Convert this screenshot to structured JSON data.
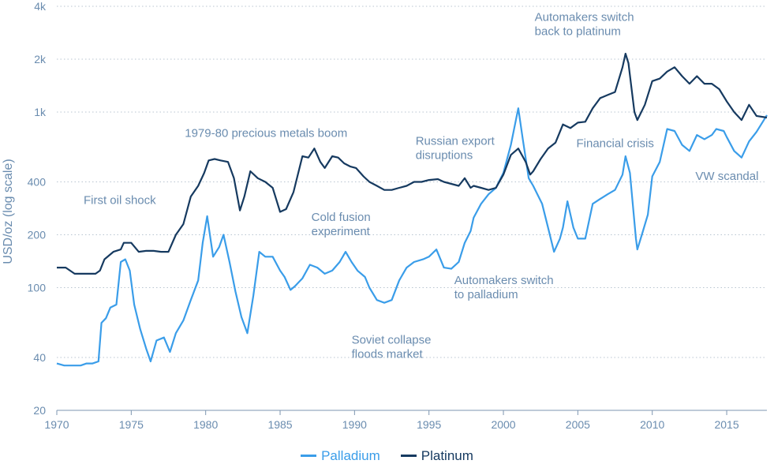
{
  "chart_data": {
    "type": "line",
    "title": "",
    "xlabel": "",
    "ylabel": "USD/oz (log scale)",
    "yscale": "log",
    "ylim": [
      20,
      4000
    ],
    "xlim": [
      1970,
      2017.7
    ],
    "y_ticks": [
      {
        "v": 20,
        "label": "20"
      },
      {
        "v": 40,
        "label": "40"
      },
      {
        "v": 100,
        "label": "100"
      },
      {
        "v": 200,
        "label": "200"
      },
      {
        "v": 400,
        "label": "400"
      },
      {
        "v": 1000,
        "label": "1k"
      },
      {
        "v": 2000,
        "label": "2k"
      },
      {
        "v": 4000,
        "label": "4k"
      }
    ],
    "x_ticks": [
      1970,
      1975,
      1980,
      1985,
      1990,
      1995,
      2000,
      2005,
      2010,
      2015
    ],
    "grid": "horizontal dotted",
    "legend_position": "bottom-center",
    "colors": {
      "palladium": "#3a9de9",
      "platinum": "#163a60",
      "text": "#6a8caf",
      "grid": "#b8c4d0"
    },
    "series": [
      {
        "name": "Palladium",
        "key": "palladium",
        "points": [
          [
            1970,
            37
          ],
          [
            1970.5,
            36
          ],
          [
            1971,
            36
          ],
          [
            1971.6,
            36
          ],
          [
            1972,
            37
          ],
          [
            1972.4,
            37
          ],
          [
            1972.8,
            38
          ],
          [
            1973,
            63
          ],
          [
            1973.3,
            67
          ],
          [
            1973.6,
            77
          ],
          [
            1974,
            80
          ],
          [
            1974.3,
            140
          ],
          [
            1974.6,
            145
          ],
          [
            1974.9,
            125
          ],
          [
            1975.2,
            80
          ],
          [
            1975.6,
            58
          ],
          [
            1976,
            45
          ],
          [
            1976.3,
            38
          ],
          [
            1976.7,
            50
          ],
          [
            1977.2,
            52
          ],
          [
            1977.6,
            43
          ],
          [
            1978,
            55
          ],
          [
            1978.5,
            65
          ],
          [
            1979,
            85
          ],
          [
            1979.5,
            110
          ],
          [
            1979.8,
            180
          ],
          [
            1980.1,
            255
          ],
          [
            1980.5,
            150
          ],
          [
            1980.9,
            170
          ],
          [
            1981.2,
            200
          ],
          [
            1981.6,
            140
          ],
          [
            1982,
            95
          ],
          [
            1982.4,
            68
          ],
          [
            1982.8,
            55
          ],
          [
            1983.2,
            90
          ],
          [
            1983.6,
            160
          ],
          [
            1984,
            150
          ],
          [
            1984.5,
            150
          ],
          [
            1985,
            125
          ],
          [
            1985.3,
            115
          ],
          [
            1985.7,
            97
          ],
          [
            1986,
            102
          ],
          [
            1986.5,
            113
          ],
          [
            1987,
            135
          ],
          [
            1987.5,
            130
          ],
          [
            1988,
            120
          ],
          [
            1988.5,
            125
          ],
          [
            1989,
            140
          ],
          [
            1989.4,
            160
          ],
          [
            1989.8,
            140
          ],
          [
            1990.2,
            125
          ],
          [
            1990.7,
            115
          ],
          [
            1991,
            100
          ],
          [
            1991.5,
            85
          ],
          [
            1992,
            82
          ],
          [
            1992.5,
            85
          ],
          [
            1993,
            110
          ],
          [
            1993.5,
            130
          ],
          [
            1994,
            140
          ],
          [
            1994.6,
            145
          ],
          [
            1995,
            150
          ],
          [
            1995.5,
            165
          ],
          [
            1996,
            130
          ],
          [
            1996.5,
            128
          ],
          [
            1997,
            140
          ],
          [
            1997.4,
            180
          ],
          [
            1997.8,
            210
          ],
          [
            1998,
            250
          ],
          [
            1998.5,
            300
          ],
          [
            1999,
            340
          ],
          [
            1999.5,
            370
          ],
          [
            2000,
            450
          ],
          [
            2000.5,
            650
          ],
          [
            2001,
            1050
          ],
          [
            2001.3,
            700
          ],
          [
            2001.7,
            420
          ],
          [
            2002,
            380
          ],
          [
            2002.6,
            300
          ],
          [
            2003,
            220
          ],
          [
            2003.4,
            160
          ],
          [
            2003.8,
            190
          ],
          [
            2004,
            220
          ],
          [
            2004.3,
            310
          ],
          [
            2004.7,
            220
          ],
          [
            2005,
            190
          ],
          [
            2005.5,
            190
          ],
          [
            2006,
            300
          ],
          [
            2006.5,
            320
          ],
          [
            2007,
            340
          ],
          [
            2007.5,
            360
          ],
          [
            2008,
            440
          ],
          [
            2008.2,
            560
          ],
          [
            2008.5,
            450
          ],
          [
            2008.9,
            190
          ],
          [
            2009,
            165
          ],
          [
            2009.3,
            200
          ],
          [
            2009.7,
            260
          ],
          [
            2010,
            430
          ],
          [
            2010.5,
            520
          ],
          [
            2011,
            800
          ],
          [
            2011.5,
            780
          ],
          [
            2012,
            650
          ],
          [
            2012.5,
            600
          ],
          [
            2013,
            740
          ],
          [
            2013.5,
            700
          ],
          [
            2014,
            740
          ],
          [
            2014.3,
            800
          ],
          [
            2014.8,
            780
          ],
          [
            2015,
            720
          ],
          [
            2015.5,
            600
          ],
          [
            2016,
            550
          ],
          [
            2016.5,
            680
          ],
          [
            2017,
            770
          ],
          [
            2017.7,
            960
          ]
        ]
      },
      {
        "name": "Platinum",
        "key": "platinum",
        "points": [
          [
            1970,
            130
          ],
          [
            1970.6,
            130
          ],
          [
            1971.2,
            120
          ],
          [
            1972,
            120
          ],
          [
            1972.6,
            120
          ],
          [
            1972.9,
            125
          ],
          [
            1973.2,
            145
          ],
          [
            1973.8,
            160
          ],
          [
            1974.3,
            165
          ],
          [
            1974.5,
            180
          ],
          [
            1975,
            180
          ],
          [
            1975.5,
            160
          ],
          [
            1976,
            162
          ],
          [
            1976.5,
            162
          ],
          [
            1977,
            160
          ],
          [
            1977.5,
            160
          ],
          [
            1978,
            200
          ],
          [
            1978.5,
            230
          ],
          [
            1979,
            330
          ],
          [
            1979.5,
            380
          ],
          [
            1979.9,
            450
          ],
          [
            1980.2,
            530
          ],
          [
            1980.6,
            540
          ],
          [
            1981,
            530
          ],
          [
            1981.5,
            520
          ],
          [
            1981.9,
            420
          ],
          [
            1982.3,
            275
          ],
          [
            1982.6,
            330
          ],
          [
            1983,
            460
          ],
          [
            1983.5,
            420
          ],
          [
            1984,
            400
          ],
          [
            1984.5,
            370
          ],
          [
            1985,
            270
          ],
          [
            1985.4,
            280
          ],
          [
            1985.9,
            350
          ],
          [
            1986.5,
            560
          ],
          [
            1986.9,
            550
          ],
          [
            1987.3,
            620
          ],
          [
            1987.7,
            520
          ],
          [
            1988,
            480
          ],
          [
            1988.5,
            560
          ],
          [
            1988.9,
            550
          ],
          [
            1989.3,
            510
          ],
          [
            1989.7,
            490
          ],
          [
            1990.1,
            480
          ],
          [
            1990.6,
            430
          ],
          [
            1991,
            400
          ],
          [
            1991.5,
            380
          ],
          [
            1992,
            360
          ],
          [
            1992.5,
            360
          ],
          [
            1993,
            370
          ],
          [
            1993.5,
            380
          ],
          [
            1994,
            400
          ],
          [
            1994.5,
            400
          ],
          [
            1995,
            410
          ],
          [
            1995.6,
            415
          ],
          [
            1996,
            400
          ],
          [
            1996.5,
            390
          ],
          [
            1997,
            380
          ],
          [
            1997.4,
            420
          ],
          [
            1997.8,
            370
          ],
          [
            1998,
            380
          ],
          [
            1998.5,
            370
          ],
          [
            1999,
            360
          ],
          [
            1999.5,
            370
          ],
          [
            2000,
            440
          ],
          [
            2000.5,
            570
          ],
          [
            2001,
            620
          ],
          [
            2001.5,
            520
          ],
          [
            2001.8,
            440
          ],
          [
            2002,
            460
          ],
          [
            2002.5,
            540
          ],
          [
            2003,
            620
          ],
          [
            2003.5,
            670
          ],
          [
            2004,
            850
          ],
          [
            2004.5,
            810
          ],
          [
            2005,
            870
          ],
          [
            2005.5,
            880
          ],
          [
            2006,
            1050
          ],
          [
            2006.5,
            1200
          ],
          [
            2007,
            1250
          ],
          [
            2007.5,
            1300
          ],
          [
            2008,
            1800
          ],
          [
            2008.2,
            2150
          ],
          [
            2008.4,
            1900
          ],
          [
            2008.8,
            1000
          ],
          [
            2009,
            900
          ],
          [
            2009.5,
            1100
          ],
          [
            2010,
            1500
          ],
          [
            2010.5,
            1550
          ],
          [
            2011,
            1700
          ],
          [
            2011.5,
            1800
          ],
          [
            2012,
            1600
          ],
          [
            2012.5,
            1450
          ],
          [
            2013,
            1600
          ],
          [
            2013.5,
            1450
          ],
          [
            2014,
            1450
          ],
          [
            2014.5,
            1350
          ],
          [
            2015,
            1150
          ],
          [
            2015.5,
            1000
          ],
          [
            2016,
            900
          ],
          [
            2016.5,
            1100
          ],
          [
            2017,
            950
          ],
          [
            2017.7,
            930
          ]
        ]
      }
    ],
    "annotations": [
      {
        "lines": [
          "First oil shock"
        ],
        "x": 1971.8,
        "y": 300
      },
      {
        "lines": [
          "1979-80 precious metals boom"
        ],
        "x": 1978.6,
        "y": 720
      },
      {
        "lines": [
          "Cold fusion",
          "experiment"
        ],
        "x": 1987.1,
        "y": 240
      },
      {
        "lines": [
          "Soviet collapse",
          "floods market"
        ],
        "x": 1989.8,
        "y": 48
      },
      {
        "lines": [
          "Russian export",
          "disruptions"
        ],
        "x": 1994.1,
        "y": 650
      },
      {
        "lines": [
          "Automakers switch",
          "to palladium"
        ],
        "x": 1996.7,
        "y": 105
      },
      {
        "lines": [
          "Automakers switch",
          "back to platinum"
        ],
        "x": 2002.1,
        "y": 3300
      },
      {
        "lines": [
          "Financial crisis"
        ],
        "x": 2004.9,
        "y": 630
      },
      {
        "lines": [
          "VW scandal"
        ],
        "x": 2012.9,
        "y": 410
      }
    ]
  },
  "legend": {
    "palladium_label": "Palladium",
    "platinum_label": "Platinum"
  }
}
